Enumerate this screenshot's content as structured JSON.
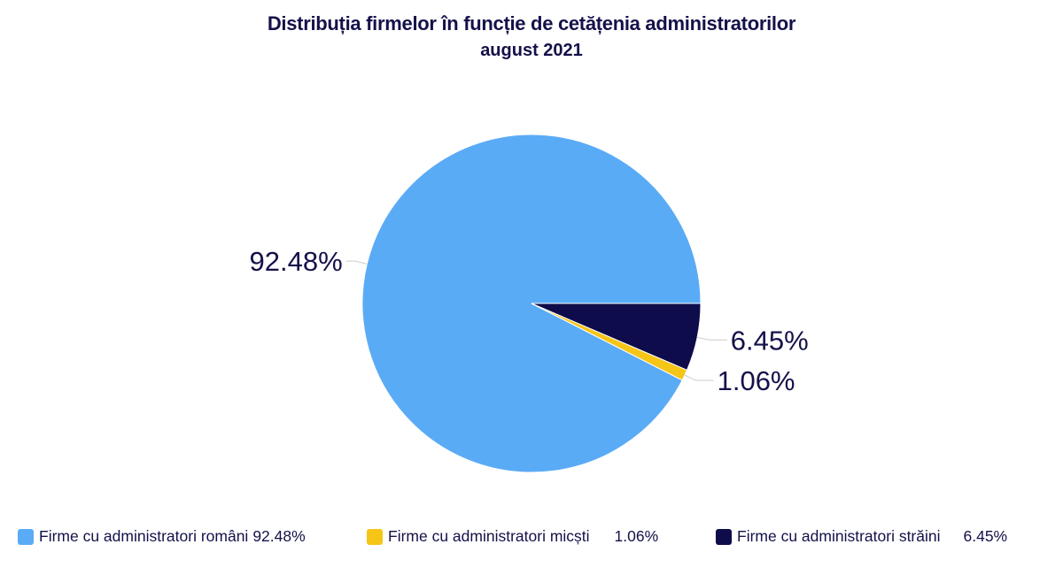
{
  "chart_data": {
    "type": "pie",
    "title": "Distribuția firmelor în funcție de cetățenia administratorilor",
    "subtitle": "august 2021",
    "slices": [
      {
        "label": "Firme cu administratori români",
        "value": 92.48,
        "value_label": "92.48%",
        "color": "#5aabf6"
      },
      {
        "label": "Firme cu administratori micști",
        "value": 1.06,
        "value_label": "1.06%",
        "color": "#f5c518"
      },
      {
        "label": "Firme cu administratori străini",
        "value": 6.45,
        "value_label": "6.45%",
        "color": "#0e0c4a"
      }
    ],
    "legend_position": "bottom"
  }
}
